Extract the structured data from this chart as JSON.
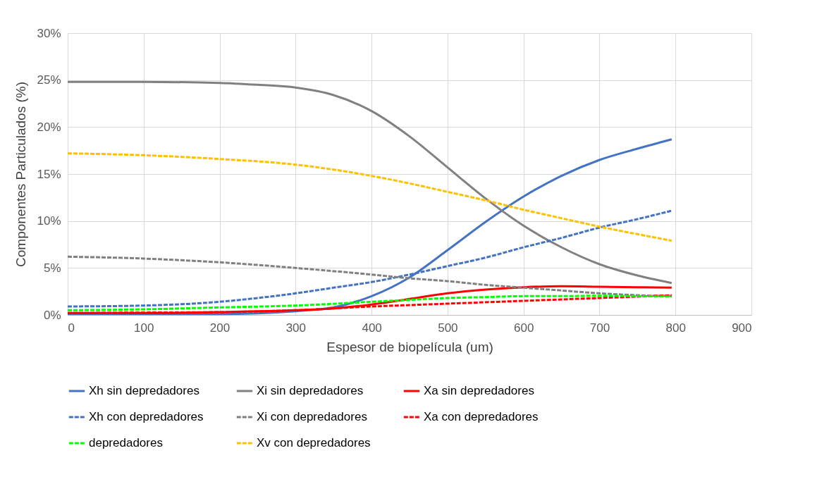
{
  "chart_data": {
    "type": "line",
    "xlabel": "Espesor de biopelícula (um)",
    "ylabel": "Componentes Particulados (%)",
    "xlim": [
      0,
      900
    ],
    "xticks": [
      0,
      100,
      200,
      300,
      400,
      500,
      600,
      700,
      800,
      900
    ],
    "ylim": [
      0,
      30
    ],
    "yticks": [
      {
        "value": 0,
        "label": "0%"
      },
      {
        "value": 5,
        "label": "5%"
      },
      {
        "value": 10,
        "label": "10%"
      },
      {
        "value": 15,
        "label": "15%"
      },
      {
        "value": 20,
        "label": "20%"
      },
      {
        "value": 25,
        "label": "25%"
      },
      {
        "value": 30,
        "label": "30%"
      }
    ],
    "grid": true,
    "legend": "bottom",
    "marker": "none",
    "series": [
      {
        "name": "Xh sin depredadores",
        "color": "#4472c4",
        "line_style": "solid",
        "x": [
          0,
          100,
          200,
          300,
          350,
          400,
          450,
          500,
          550,
          600,
          650,
          700,
          750,
          795
        ],
        "values": [
          0.1,
          0.1,
          0.1,
          0.4,
          0.8,
          2.0,
          4.0,
          6.9,
          9.9,
          12.6,
          14.8,
          16.5,
          17.7,
          18.7
        ]
      },
      {
        "name": "Xi sin depredadores",
        "color": "#808080",
        "line_style": "solid",
        "x": [
          0,
          100,
          200,
          250,
          300,
          350,
          400,
          450,
          500,
          550,
          600,
          650,
          700,
          750,
          795
        ],
        "values": [
          24.8,
          24.8,
          24.7,
          24.5,
          24.2,
          23.4,
          21.7,
          19.0,
          15.7,
          12.4,
          9.5,
          7.2,
          5.4,
          4.2,
          3.4
        ]
      },
      {
        "name": "Xa sin depredadores",
        "color": "#ff0000",
        "line_style": "solid",
        "x": [
          0,
          100,
          200,
          300,
          350,
          400,
          450,
          500,
          550,
          600,
          650,
          700,
          750,
          795
        ],
        "values": [
          0.2,
          0.2,
          0.3,
          0.5,
          0.7,
          1.1,
          1.7,
          2.3,
          2.7,
          2.95,
          3.05,
          3.0,
          2.95,
          2.9
        ]
      },
      {
        "name": "Xh con depredadores",
        "color": "#4472c4",
        "line_style": "dashed",
        "x": [
          0,
          100,
          200,
          250,
          300,
          350,
          400,
          450,
          500,
          550,
          600,
          650,
          700,
          750,
          795
        ],
        "values": [
          0.9,
          1.0,
          1.4,
          1.8,
          2.3,
          2.9,
          3.5,
          4.3,
          5.2,
          6.1,
          7.2,
          8.2,
          9.3,
          10.2,
          11.1
        ]
      },
      {
        "name": "Xi con depredadores",
        "color": "#808080",
        "line_style": "dashed",
        "x": [
          0,
          100,
          200,
          300,
          400,
          450,
          500,
          550,
          600,
          650,
          700,
          750,
          795
        ],
        "values": [
          6.2,
          6.0,
          5.6,
          5.0,
          4.3,
          3.9,
          3.6,
          3.2,
          2.9,
          2.6,
          2.3,
          2.1,
          2.0
        ]
      },
      {
        "name": "Xa con  depredadores",
        "color": "#ff0000",
        "line_style": "dashed",
        "x": [
          0,
          100,
          200,
          300,
          400,
          450,
          500,
          550,
          600,
          650,
          700,
          750,
          795
        ],
        "values": [
          0.2,
          0.25,
          0.3,
          0.5,
          0.9,
          1.05,
          1.2,
          1.35,
          1.5,
          1.65,
          1.8,
          1.95,
          2.1
        ]
      },
      {
        "name": "depredadores",
        "color": "#00ff00",
        "line_style": "dashed",
        "x": [
          0,
          100,
          200,
          300,
          400,
          450,
          500,
          550,
          600,
          650,
          700,
          750,
          795
        ],
        "values": [
          0.5,
          0.6,
          0.8,
          1.0,
          1.4,
          1.6,
          1.8,
          1.9,
          2.0,
          2.0,
          2.05,
          2.0,
          1.95
        ]
      },
      {
        "name": "Xv con depredadores",
        "color": "#ffc000",
        "line_style": "dashed",
        "x": [
          0,
          100,
          200,
          300,
          400,
          450,
          500,
          550,
          600,
          650,
          700,
          750,
          795
        ],
        "values": [
          17.2,
          17.0,
          16.6,
          16.0,
          14.8,
          14.0,
          13.1,
          12.2,
          11.2,
          10.3,
          9.4,
          8.6,
          7.9
        ]
      }
    ]
  }
}
